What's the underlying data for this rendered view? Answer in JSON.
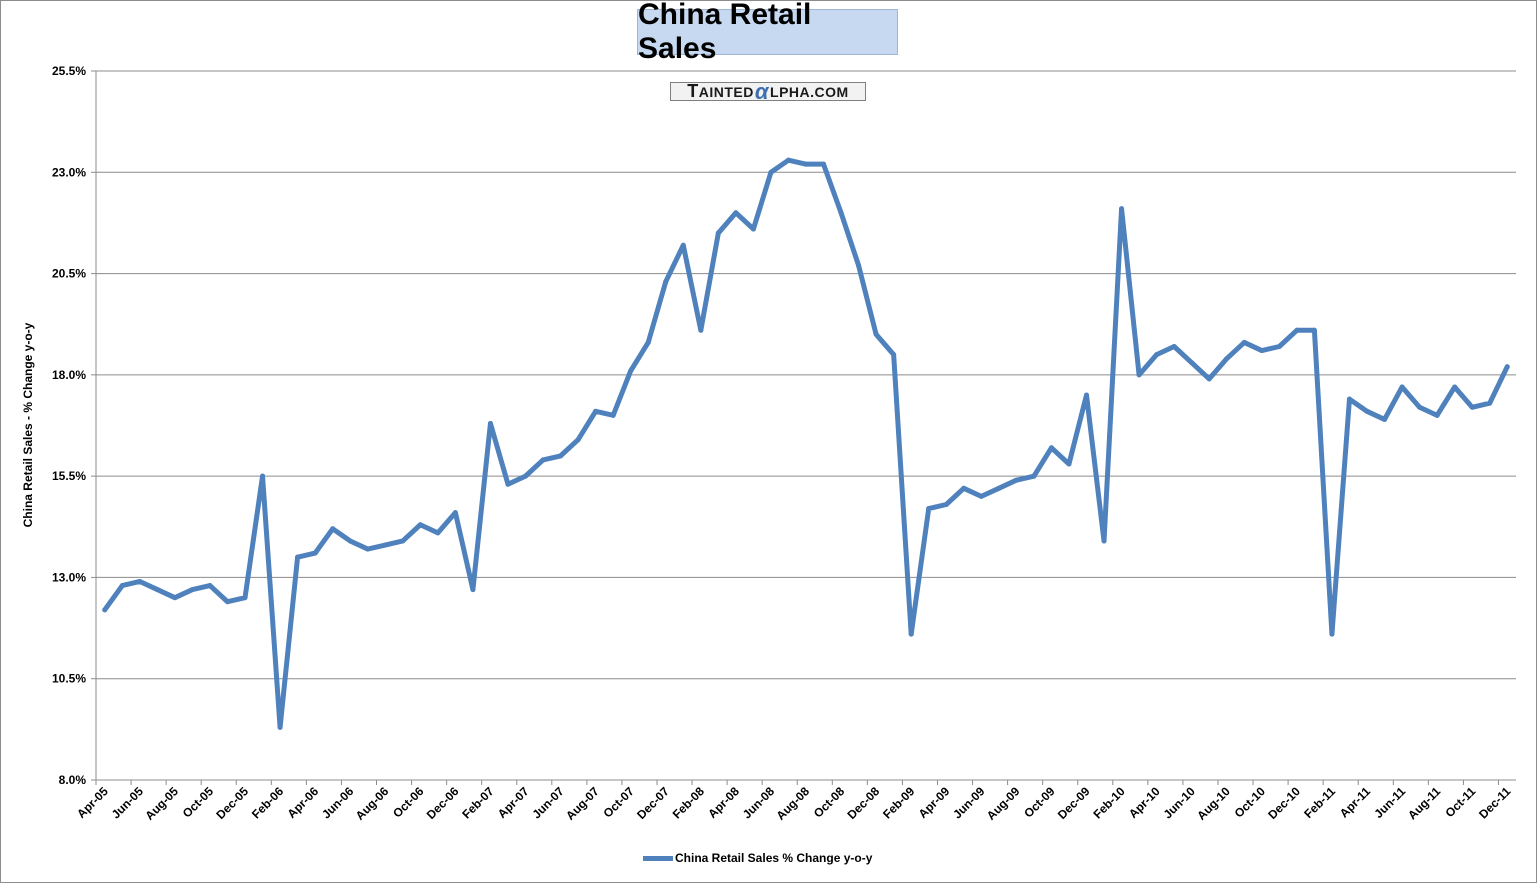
{
  "chart_data": {
    "type": "line",
    "title": "China Retail Sales",
    "watermark": "TAINTEDALPHA.COM",
    "ylabel": "China Retail Sales - % Change y-o-y",
    "xlabel": "",
    "ylim": [
      8.0,
      25.5
    ],
    "yticks": [
      "8.0%",
      "10.5%",
      "13.0%",
      "15.5%",
      "18.0%",
      "20.5%",
      "23.0%",
      "25.5%"
    ],
    "grid": "horizontal",
    "legend_position": "bottom",
    "line_color": "#4f81bd",
    "x": [
      "Apr-05",
      "May-05",
      "Jun-05",
      "Jul-05",
      "Aug-05",
      "Sep-05",
      "Oct-05",
      "Nov-05",
      "Dec-05",
      "Jan-06",
      "Feb-06",
      "Mar-06",
      "Apr-06",
      "May-06",
      "Jun-06",
      "Jul-06",
      "Aug-06",
      "Sep-06",
      "Oct-06",
      "Nov-06",
      "Dec-06",
      "Jan-07",
      "Feb-07",
      "Mar-07",
      "Apr-07",
      "May-07",
      "Jun-07",
      "Jul-07",
      "Aug-07",
      "Sep-07",
      "Oct-07",
      "Nov-07",
      "Dec-07",
      "Jan-08",
      "Feb-08",
      "Mar-08",
      "Apr-08",
      "May-08",
      "Jun-08",
      "Jul-08",
      "Aug-08",
      "Sep-08",
      "Oct-08",
      "Nov-08",
      "Dec-08",
      "Jan-09",
      "Feb-09",
      "Mar-09",
      "Apr-09",
      "May-09",
      "Jun-09",
      "Jul-09",
      "Aug-09",
      "Sep-09",
      "Oct-09",
      "Nov-09",
      "Dec-09",
      "Jan-10",
      "Feb-10",
      "Mar-10",
      "Apr-10",
      "May-10",
      "Jun-10",
      "Jul-10",
      "Aug-10",
      "Sep-10",
      "Oct-10",
      "Nov-10",
      "Dec-10",
      "Jan-11",
      "Feb-11",
      "Mar-11",
      "Apr-11",
      "May-11",
      "Jun-11",
      "Jul-11",
      "Aug-11",
      "Sep-11",
      "Oct-11",
      "Nov-11",
      "Dec-11"
    ],
    "xtick_labels": [
      "Apr-05",
      "Jun-05",
      "Aug-05",
      "Oct-05",
      "Dec-05",
      "Feb-06",
      "Apr-06",
      "Jun-06",
      "Aug-06",
      "Oct-06",
      "Dec-06",
      "Feb-07",
      "Apr-07",
      "Jun-07",
      "Aug-07",
      "Oct-07",
      "Dec-07",
      "Feb-08",
      "Apr-08",
      "Jun-08",
      "Aug-08",
      "Oct-08",
      "Dec-08",
      "Feb-09",
      "Apr-09",
      "Jun-09",
      "Aug-09",
      "Oct-09",
      "Dec-09",
      "Feb-10",
      "Apr-10",
      "Jun-10",
      "Aug-10",
      "Oct-10",
      "Dec-10",
      "Feb-11",
      "Apr-11",
      "Jun-11",
      "Aug-11",
      "Oct-11",
      "Dec-11"
    ],
    "series": [
      {
        "name": "China Retail Sales % Change y-o-y",
        "values": [
          12.2,
          12.8,
          12.9,
          12.7,
          12.5,
          12.7,
          12.8,
          12.4,
          12.5,
          15.5,
          9.3,
          13.5,
          13.6,
          14.2,
          13.9,
          13.7,
          13.8,
          13.9,
          14.3,
          14.1,
          14.6,
          12.7,
          16.8,
          15.3,
          15.5,
          15.9,
          16.0,
          16.4,
          17.1,
          17.0,
          18.1,
          18.8,
          20.3,
          21.2,
          19.1,
          21.5,
          22.0,
          21.6,
          23.0,
          23.3,
          23.2,
          23.2,
          22.0,
          20.7,
          19.0,
          18.5,
          11.6,
          14.7,
          14.8,
          15.2,
          15.0,
          15.2,
          15.4,
          15.5,
          16.2,
          15.8,
          17.5,
          13.9,
          22.1,
          18.0,
          18.5,
          18.7,
          18.3,
          17.9,
          18.4,
          18.8,
          18.6,
          18.7,
          19.1,
          19.1,
          11.6,
          17.4,
          17.1,
          16.9,
          17.7,
          17.2,
          17.0,
          17.7,
          17.2,
          17.3,
          18.2
        ]
      }
    ]
  }
}
